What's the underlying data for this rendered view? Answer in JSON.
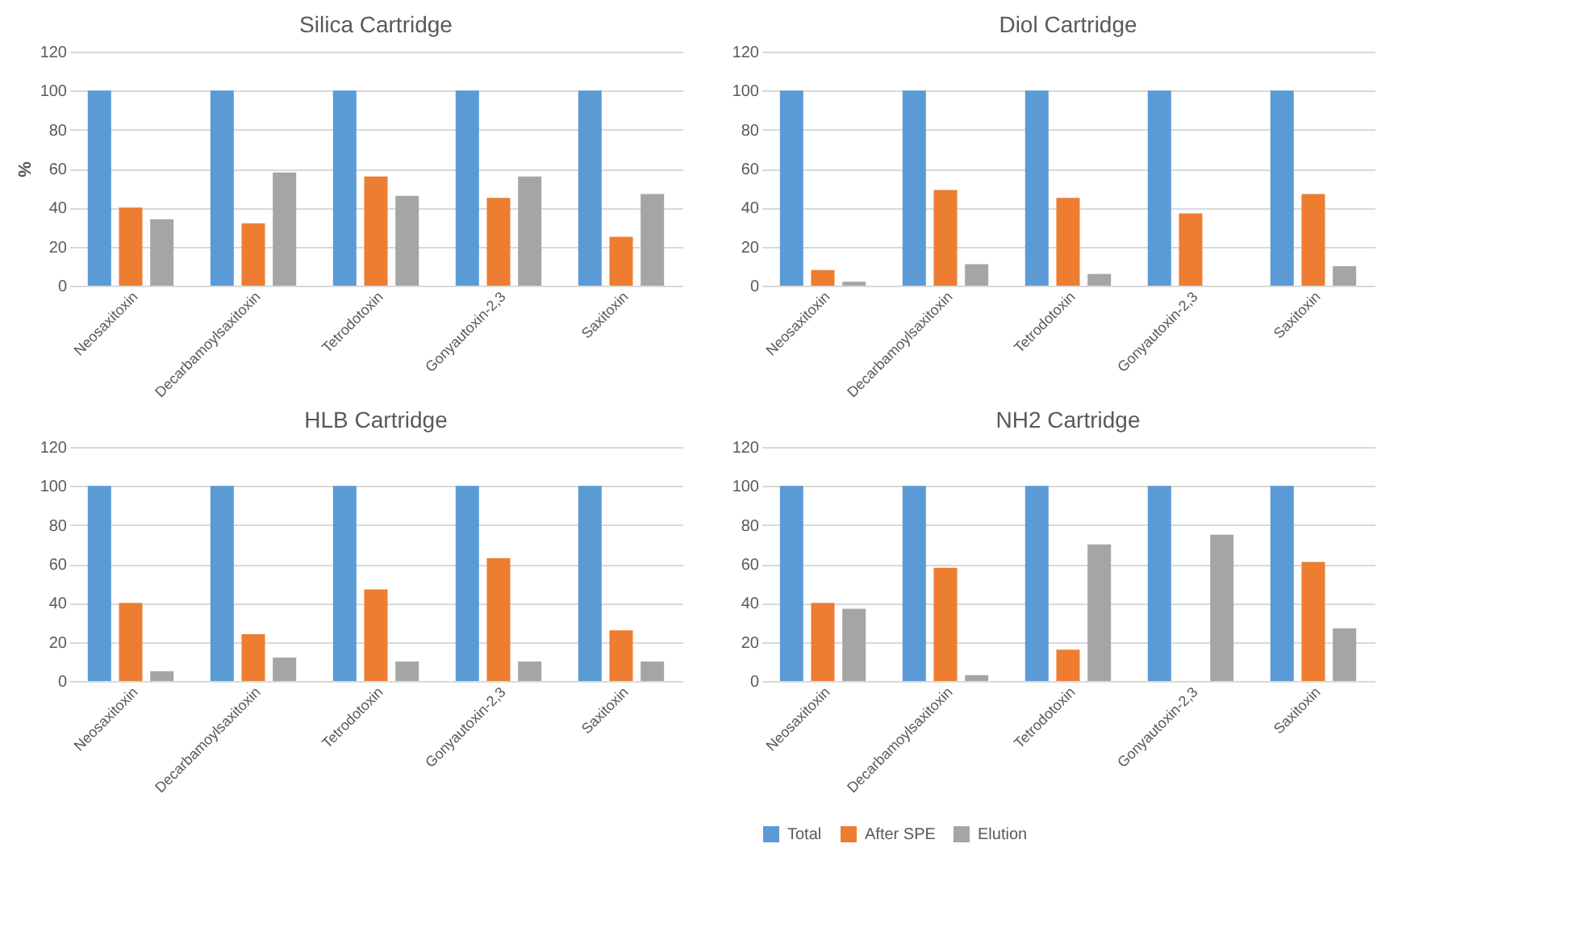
{
  "chart_data": [
    {
      "type": "bar",
      "title": "Silica Cartridge",
      "ylabel": "%",
      "categories": [
        "Neosaxitoxin",
        "Decarbamoylsaxitoxin",
        "Tetrodotoxin",
        "Gonyautoxin-2,3",
        "Saxitoxin"
      ],
      "ylim": [
        0,
        120
      ],
      "yticks": [
        0,
        20,
        40,
        60,
        80,
        100,
        120
      ],
      "grid": "y",
      "series": [
        {
          "color": "#5b9bd5",
          "values": [
            100,
            100,
            100,
            100,
            100
          ]
        },
        {
          "color": "#ed7d31",
          "values": [
            40,
            32,
            56,
            45,
            25
          ]
        },
        {
          "color": "#a5a5a5",
          "values": [
            34,
            58,
            46,
            56,
            47
          ]
        }
      ]
    },
    {
      "type": "bar",
      "title": "Diol Cartridge",
      "categories": [
        "Neosaxitoxin",
        "Decarbamoylsaxitoxin",
        "Tetrodotoxin",
        "Gonyautoxin-2,3",
        "Saxitoxin"
      ],
      "ylim": [
        0,
        120
      ],
      "yticks": [
        0,
        20,
        40,
        60,
        80,
        100,
        120
      ],
      "grid": "y",
      "series": [
        {
          "color": "#5b9bd5",
          "values": [
            100,
            100,
            100,
            100,
            100
          ]
        },
        {
          "color": "#ed7d31",
          "values": [
            8,
            49,
            45,
            37,
            47
          ]
        },
        {
          "color": "#a5a5a5",
          "values": [
            2,
            11,
            6,
            null,
            10
          ]
        }
      ]
    },
    {
      "type": "bar",
      "title": "HLB Cartridge",
      "categories": [
        "Neosaxitoxin",
        "Decarbamoylsaxitoxin",
        "Tetrodotoxin",
        "Gonyautoxin-2,3",
        "Saxitoxin"
      ],
      "ylim": [
        0,
        120
      ],
      "yticks": [
        0,
        20,
        40,
        60,
        80,
        100,
        120
      ],
      "grid": "y",
      "series": [
        {
          "color": "#5b9bd5",
          "values": [
            100,
            100,
            100,
            100,
            100
          ]
        },
        {
          "color": "#ed7d31",
          "values": [
            40,
            24,
            47,
            63,
            26
          ]
        },
        {
          "color": "#a5a5a5",
          "values": [
            5,
            12,
            10,
            10,
            10
          ]
        }
      ]
    },
    {
      "type": "bar",
      "title": "NH2 Cartridge",
      "categories": [
        "Neosaxitoxin",
        "Decarbamoylsaxitoxin",
        "Tetrodotoxin",
        "Gonyautoxin-2,3",
        "Saxitoxin"
      ],
      "ylim": [
        0,
        120
      ],
      "yticks": [
        0,
        20,
        40,
        60,
        80,
        100,
        120
      ],
      "grid": "y",
      "legend": "bottom",
      "series": [
        {
          "name": "Total",
          "color": "#5b9bd5",
          "values": [
            100,
            100,
            100,
            100,
            100
          ]
        },
        {
          "name": "After SPE",
          "color": "#ed7d31",
          "values": [
            40,
            58,
            16,
            null,
            61
          ]
        },
        {
          "name": "Elution",
          "color": "#a5a5a5",
          "values": [
            37,
            3,
            70,
            75,
            27
          ]
        }
      ]
    }
  ]
}
